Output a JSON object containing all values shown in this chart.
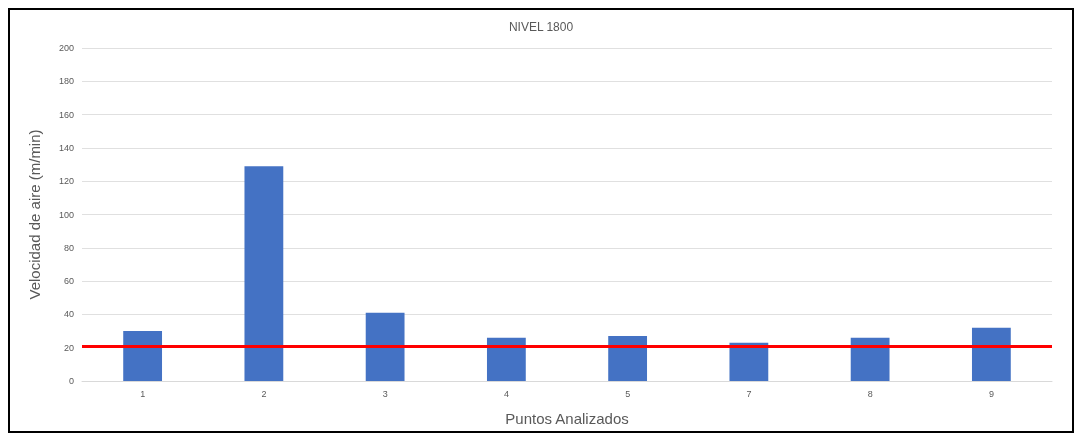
{
  "chart_data": {
    "type": "bar",
    "title": "NIVEL 1800",
    "xlabel": "Puntos Analizados",
    "ylabel": "Velocidad de aire (m/min)",
    "categories": [
      "1",
      "2",
      "3",
      "4",
      "5",
      "7",
      "8",
      "9"
    ],
    "values": [
      30,
      129,
      41,
      26,
      27,
      23,
      26,
      32
    ],
    "color": "#4472c4",
    "ylim": [
      0,
      200
    ],
    "yticks": [
      0,
      20,
      40,
      60,
      80,
      100,
      120,
      140,
      160,
      180,
      200
    ],
    "grid": "y",
    "ref_lines": [
      {
        "axis": "y",
        "value": 21,
        "color": "#ff0000"
      }
    ]
  }
}
